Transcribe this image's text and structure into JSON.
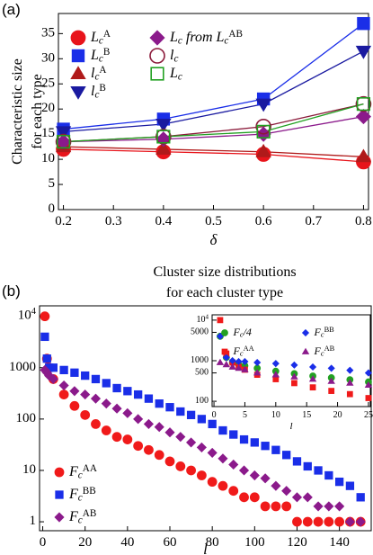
{
  "chart_data": [
    {
      "type": "line",
      "panel_label": "(a)",
      "xlabel": "δ",
      "ylabel": [
        "Characteristic size",
        "for each type"
      ],
      "x": [
        0.2,
        0.4,
        0.6,
        0.8
      ],
      "xlim": [
        0.19,
        0.81
      ],
      "ylim": [
        0,
        39
      ],
      "xticks": [
        0.2,
        0.3,
        0.4,
        0.5,
        0.6,
        0.7,
        0.8
      ],
      "yticks": [
        0,
        5,
        10,
        15,
        20,
        25,
        30,
        35
      ],
      "legend": "upper left",
      "legend_ncol": 2,
      "series": [
        {
          "name": "L_c^A",
          "color": "#e8141b",
          "marker": "circle",
          "filled": true,
          "values": [
            12,
            11.5,
            11,
            9.5
          ]
        },
        {
          "name": "L_c^B",
          "color": "#1a2ee8",
          "marker": "square",
          "filled": true,
          "values": [
            16,
            18,
            22,
            37
          ]
        },
        {
          "name": "l_c^A",
          "color": "#b01a1a",
          "marker": "triangle-up",
          "filled": true,
          "values": [
            12.5,
            12,
            11.5,
            10.5
          ]
        },
        {
          "name": "l_c^B",
          "color": "#1a1aa0",
          "marker": "triangle-down",
          "filled": true,
          "values": [
            15.5,
            17,
            21,
            31.5
          ]
        },
        {
          "name": "L_c from L_c^AB",
          "color": "#8b1a8b",
          "marker": "diamond",
          "filled": true,
          "values": [
            13.5,
            14,
            15,
            18.5
          ]
        },
        {
          "name": "l_c",
          "color": "#8b1a3a",
          "marker": "circle",
          "filled": false,
          "values": [
            13.5,
            14.5,
            16.5,
            21
          ]
        },
        {
          "name": "L_c",
          "color": "#22a022",
          "marker": "square",
          "filled": false,
          "values": [
            13.5,
            14.5,
            15.5,
            21
          ]
        }
      ]
    },
    {
      "type": "scatter",
      "panel_label": "(b)",
      "title": "Cluster size distributions",
      "subtitle": "for each cluster type",
      "xlabel": "l",
      "ylog": true,
      "x": [
        1,
        2,
        3,
        5,
        10,
        15,
        20,
        25,
        30,
        35,
        40,
        45,
        50,
        55,
        60,
        65,
        70,
        75,
        80,
        85,
        90,
        95,
        100,
        105,
        110,
        115,
        120,
        125,
        130,
        135,
        140,
        145,
        150
      ],
      "xlim": [
        -1.5,
        155
      ],
      "ylim": [
        0.67,
        16000
      ],
      "xticks": [
        0,
        20,
        40,
        60,
        80,
        100,
        120,
        140
      ],
      "yticks": [
        1,
        10,
        100,
        1000,
        {
          "value": 10000,
          "label": "10^4"
        }
      ],
      "legend": "lower left",
      "legend_ncol": 1,
      "series": [
        {
          "name": "F_c^AA",
          "color": "#f01a1a",
          "marker": "circle",
          "filled": true,
          "values": [
            10000,
            1500,
            1000,
            600,
            300,
            180,
            120,
            80,
            60,
            45,
            40,
            30,
            25,
            20,
            15,
            12,
            10,
            8,
            6,
            5,
            4,
            3,
            3,
            2,
            2,
            2,
            1,
            1,
            1,
            1,
            1,
            1,
            1
          ]
        },
        {
          "name": "F_c^BB",
          "color": "#1a2ee8",
          "marker": "square",
          "filled": true,
          "values": [
            4000,
            1500,
            1000,
            1000,
            900,
            800,
            700,
            600,
            500,
            400,
            350,
            300,
            250,
            200,
            170,
            140,
            120,
            100,
            80,
            60,
            50,
            40,
            35,
            30,
            25,
            20,
            15,
            12,
            10,
            8,
            6,
            5,
            3
          ]
        },
        {
          "name": "F_c^AB",
          "color": "#8b1a8b",
          "marker": "diamond",
          "filled": true,
          "values": [
            900,
            800,
            700,
            600,
            450,
            350,
            300,
            250,
            200,
            160,
            130,
            100,
            80,
            70,
            55,
            45,
            35,
            28,
            22,
            17,
            13,
            10,
            8,
            7,
            5,
            4,
            3,
            3,
            2,
            2,
            2,
            1,
            1
          ]
        }
      ]
    },
    {
      "type": "scatter",
      "xlabel": "l",
      "ylog": true,
      "x": [
        1,
        2,
        3,
        4,
        5,
        7,
        10,
        13,
        16,
        19,
        22,
        25
      ],
      "xlim": [
        -0.3,
        25.3
      ],
      "ylim": [
        74,
        13500
      ],
      "xticks": [
        0,
        5,
        10,
        15,
        20,
        25
      ],
      "yticks": [
        100,
        500,
        1000,
        5000,
        {
          "value": 10000,
          "label": "10^4"
        }
      ],
      "legend": "upper right",
      "legend_ncol": 2,
      "series": [
        {
          "name": "F_c/4",
          "color": "#22a022",
          "marker": "circle",
          "filled": true,
          "values": [
            4000,
            1200,
            900,
            800,
            750,
            650,
            550,
            480,
            420,
            380,
            340,
            300
          ]
        },
        {
          "name": "F_c^AA",
          "color": "#f01a1a",
          "marker": "square",
          "filled": true,
          "values": [
            10000,
            1500,
            900,
            700,
            600,
            450,
            350,
            280,
            220,
            180,
            150,
            120
          ]
        },
        {
          "name": "F_c^BB",
          "color": "#1a2ee8",
          "marker": "diamond",
          "filled": true,
          "values": [
            4000,
            1200,
            1000,
            950,
            950,
            900,
            850,
            780,
            700,
            650,
            580,
            500
          ]
        },
        {
          "name": "F_c^AB",
          "color": "#8b1a8b",
          "marker": "triangle-up",
          "filled": true,
          "values": [
            900,
            800,
            700,
            650,
            600,
            500,
            450,
            400,
            350,
            310,
            280,
            250
          ]
        }
      ]
    }
  ]
}
